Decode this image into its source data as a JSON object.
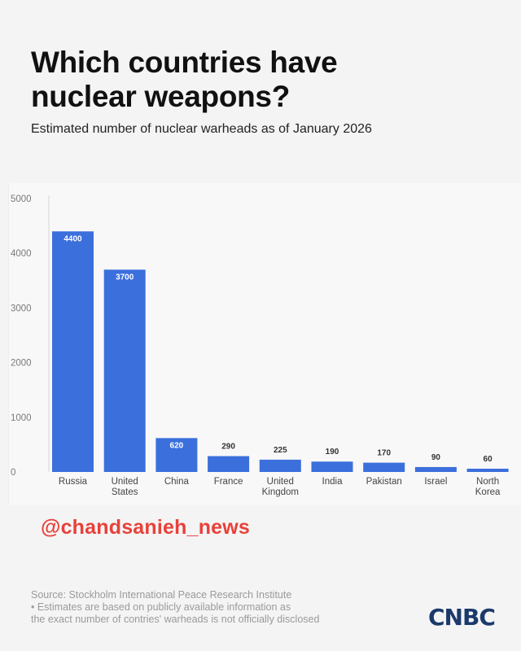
{
  "header": {
    "title_line1": "Which countries have",
    "title_line2": "nuclear weapons?",
    "subtitle": "Estimated number of nuclear warheads as of January 2026"
  },
  "colors": {
    "bar": "#3b6fdc",
    "title": "#111111",
    "watermark": "#e8413a",
    "logo": "#1b3a6b"
  },
  "chart_data": {
    "type": "bar",
    "title": "",
    "xlabel": "",
    "ylabel": "",
    "categories": [
      [
        "Russia"
      ],
      [
        "United",
        "States"
      ],
      [
        "China"
      ],
      [
        "France"
      ],
      [
        "United",
        "Kingdom"
      ],
      [
        "India"
      ],
      [
        "Pakistan"
      ],
      [
        "Israel"
      ],
      [
        "North",
        "Korea"
      ]
    ],
    "values": [
      4400,
      3700,
      620,
      290,
      225,
      190,
      170,
      90,
      60
    ],
    "data_labels": [
      "4400",
      "3700",
      "620",
      "290",
      "225",
      "190",
      "170",
      "90",
      "60"
    ],
    "ylim": [
      0,
      5000
    ],
    "yticks": [
      0,
      1000,
      2000,
      3000,
      4000,
      5000
    ],
    "ytick_labels": [
      "0",
      "1000",
      "2000",
      "3000",
      "4000",
      "5000"
    ],
    "grid": false,
    "legend": "none"
  },
  "watermark": "@chandsanieh_news",
  "footer": {
    "line1": "Source: Stockholm International Peace Research Institute",
    "line2": "• Estimates are based on publicly available information as",
    "line3": "the exact number of contries' warheads is not officially disclosed"
  },
  "logo": {
    "text": "CNBC",
    "icon": "cnbc-logo-icon"
  }
}
